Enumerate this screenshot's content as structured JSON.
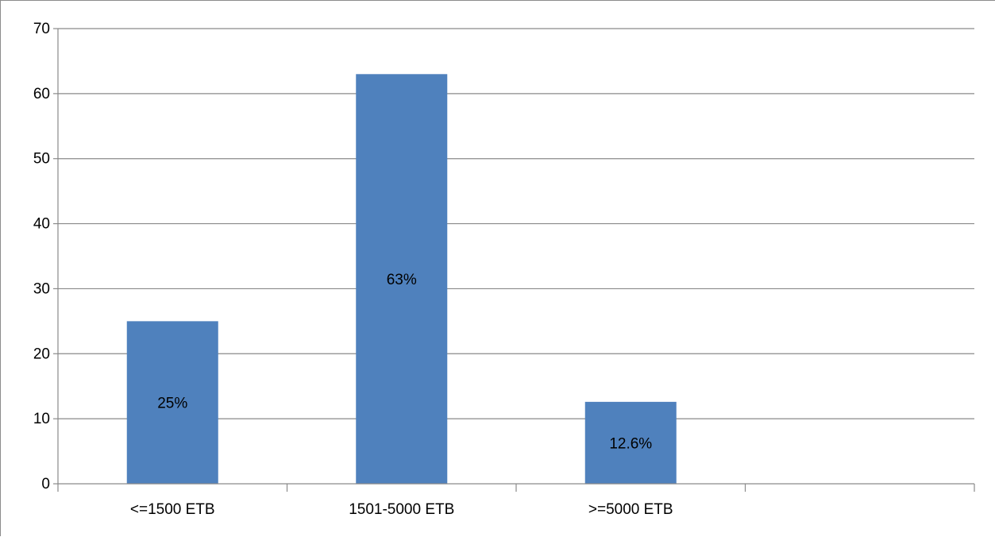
{
  "chart_data": {
    "type": "bar",
    "title": "",
    "xlabel": "",
    "ylabel": "",
    "categories": [
      "<=1500 ETB",
      "1501-5000 ETB",
      ">=5000 ETB",
      ""
    ],
    "values": [
      25,
      63,
      12.6,
      null
    ],
    "data_labels": [
      "25%",
      "63%",
      "12.6%",
      ""
    ],
    "ylim": [
      0,
      70
    ],
    "yticks": [
      0,
      10,
      20,
      30,
      40,
      50,
      60,
      70
    ],
    "grid": true,
    "legend": "none",
    "bar_color": "#4f81bd"
  }
}
